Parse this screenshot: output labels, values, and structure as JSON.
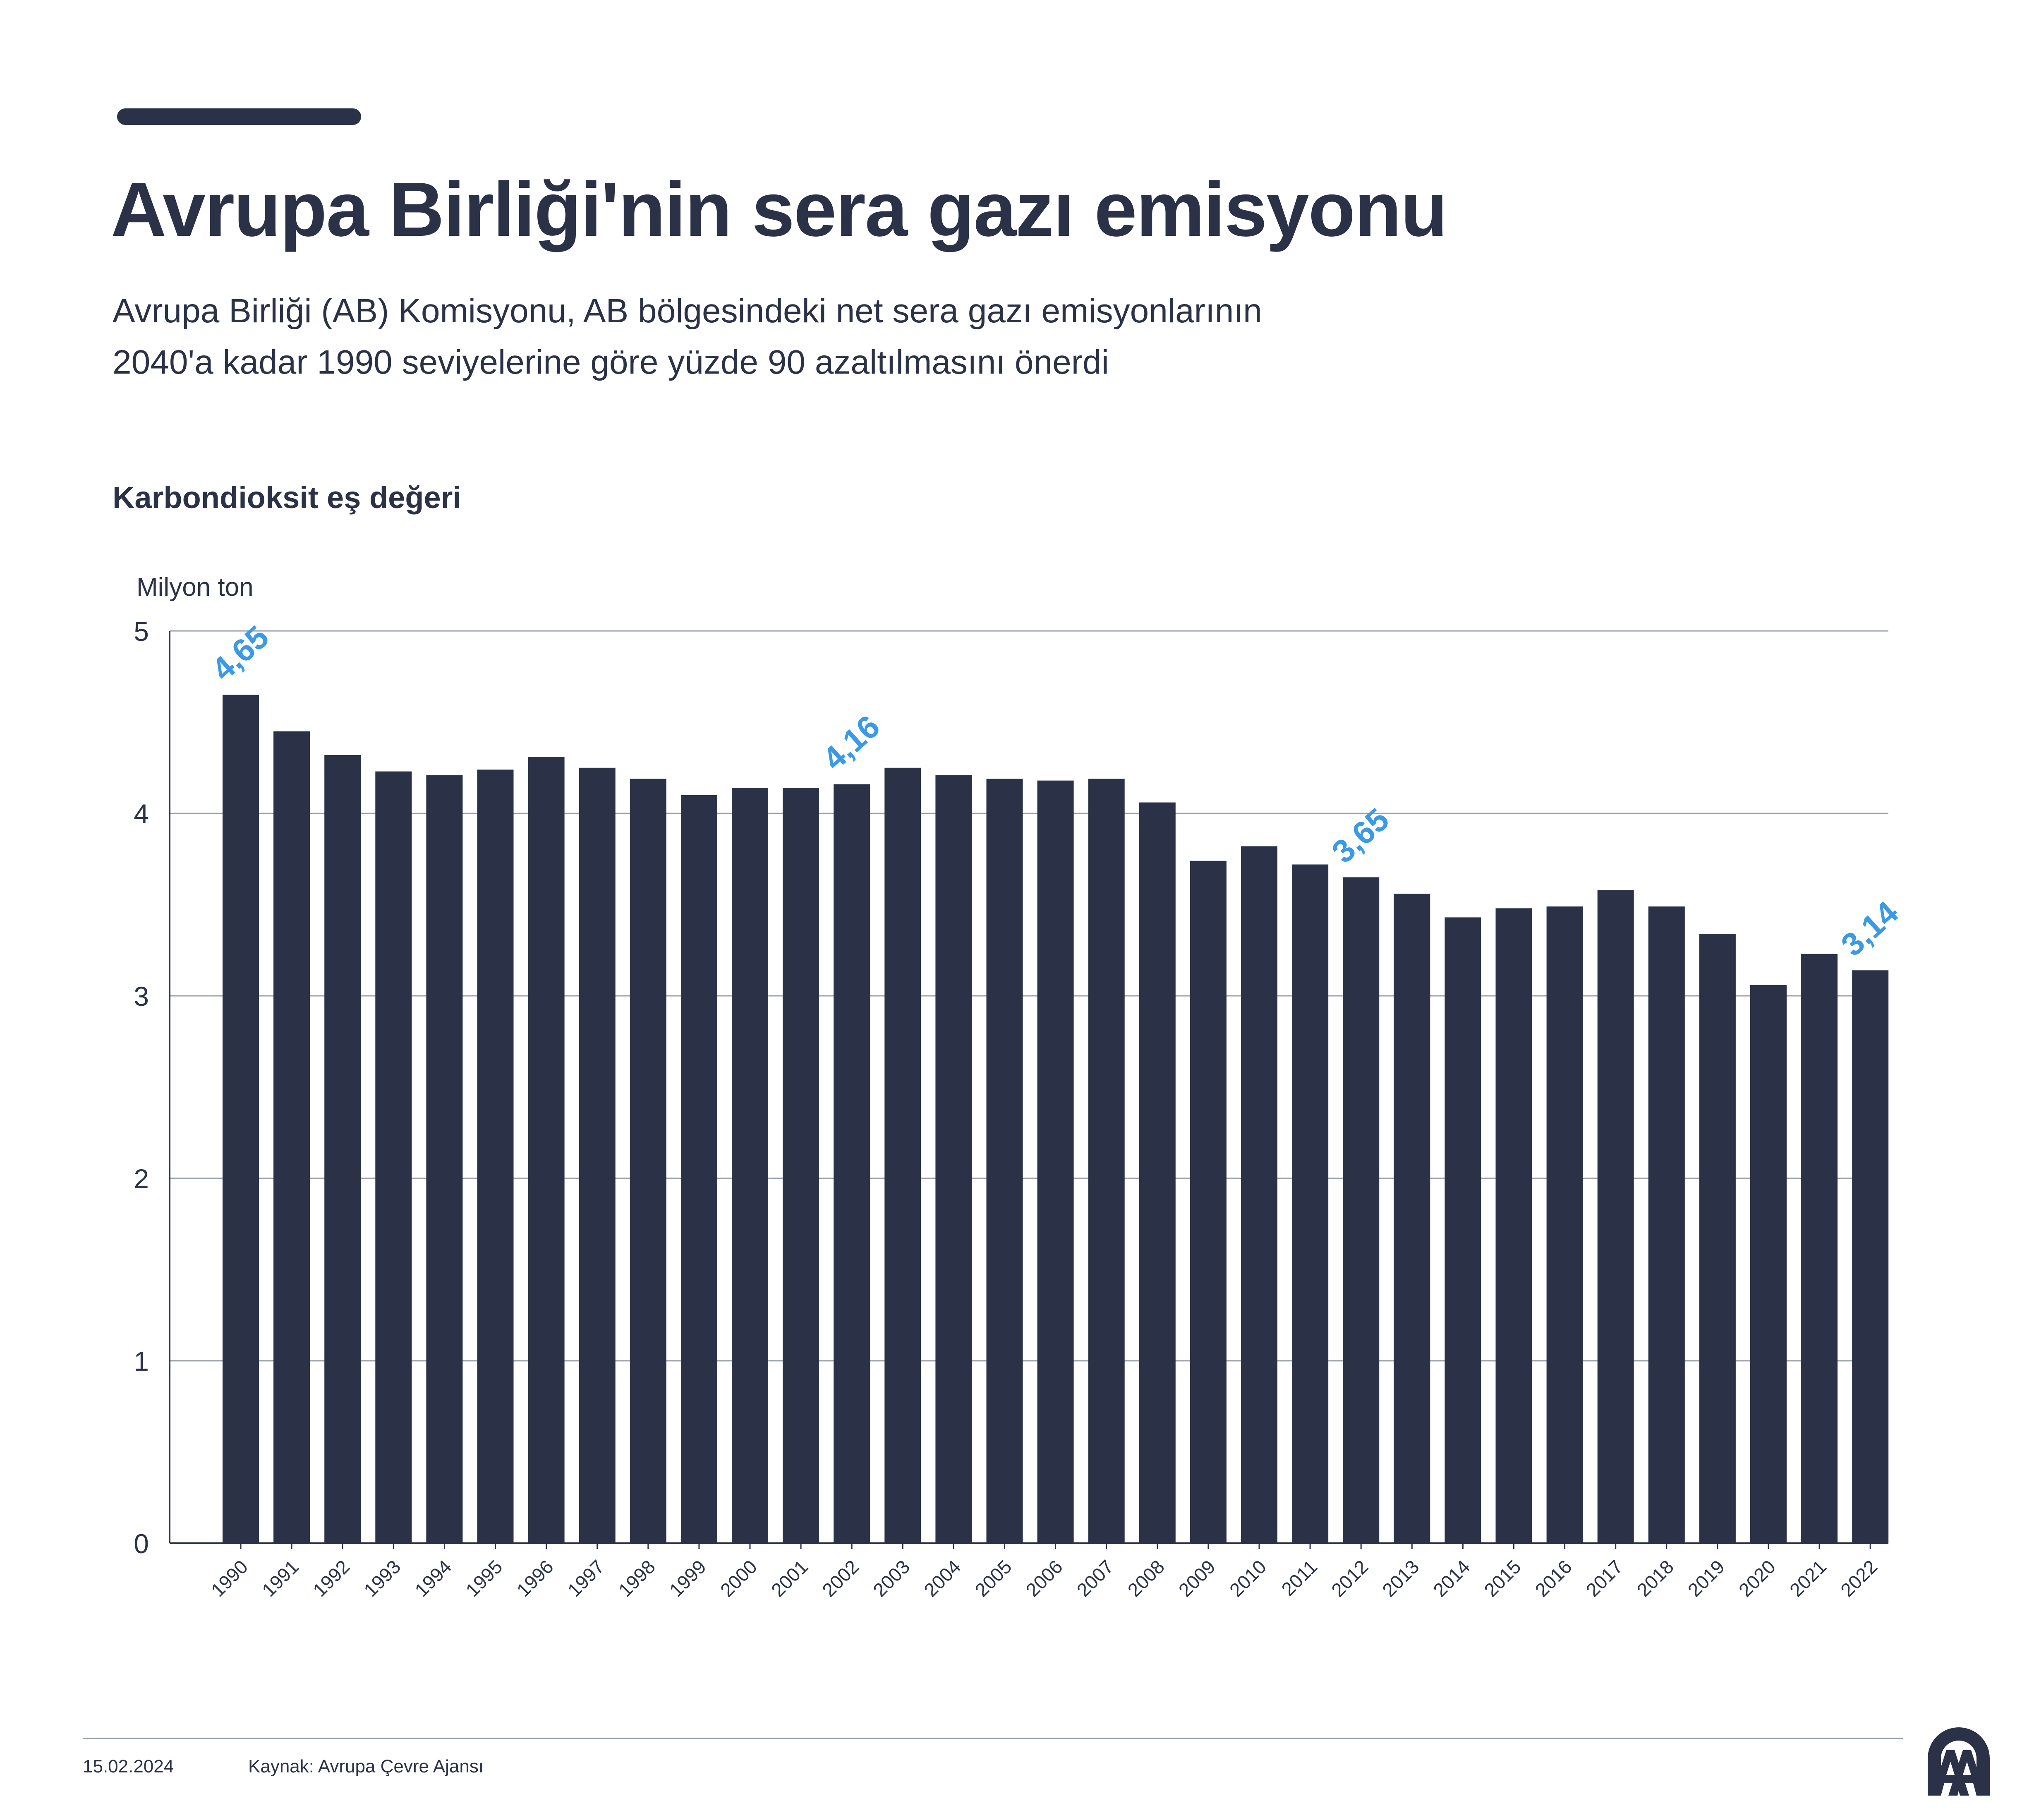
{
  "header": {
    "title": "Avrupa Birliği'nin sera gazı emisyonu",
    "subtitle_line1": "Avrupa Birliği (AB) Komisyonu, AB bölgesindeki net sera gazı emisyonlarının",
    "subtitle_line2": "2040'a kadar 1990 seviyelerine göre yüzde 90 azaltılmasını önerdi",
    "chart_heading": "Karbondioksit eş değeri"
  },
  "footer": {
    "date": "15.02.2024",
    "source": "Kaynak: Avrupa Çevre Ajansı",
    "logo_text": "AA"
  },
  "colors": {
    "bar": "#2b3248",
    "highlight_label": "#3a9ae6",
    "grid": "#9aa0aa",
    "text": "#2b3248"
  },
  "chart_data": {
    "type": "bar",
    "ylabel": "Milyon ton",
    "ylim": [
      0,
      5
    ],
    "yticks": [
      "0",
      "1",
      "2",
      "3",
      "4",
      "5"
    ],
    "grid": true,
    "categories": [
      "1990",
      "1991",
      "1992",
      "1993",
      "1994",
      "1995",
      "1996",
      "1997",
      "1998",
      "1999",
      "2000",
      "2001",
      "2002",
      "2003",
      "2004",
      "2005",
      "2006",
      "2007",
      "2008",
      "2009",
      "2010",
      "2011",
      "2012",
      "2013",
      "2014",
      "2015",
      "2016",
      "2017",
      "2018",
      "2019",
      "2020",
      "2021",
      "2022"
    ],
    "values": [
      4.65,
      4.45,
      4.32,
      4.23,
      4.21,
      4.24,
      4.31,
      4.25,
      4.19,
      4.1,
      4.14,
      4.14,
      4.16,
      4.25,
      4.21,
      4.19,
      4.18,
      4.19,
      4.06,
      3.74,
      3.82,
      3.72,
      3.65,
      3.56,
      3.43,
      3.48,
      3.49,
      3.58,
      3.49,
      3.34,
      3.06,
      3.23,
      3.14
    ],
    "data_labels": [
      {
        "category": "1990",
        "text": "4,65"
      },
      {
        "category": "2002",
        "text": "4,16"
      },
      {
        "category": "2012",
        "text": "3,65"
      },
      {
        "category": "2022",
        "text": "3,14"
      }
    ]
  }
}
